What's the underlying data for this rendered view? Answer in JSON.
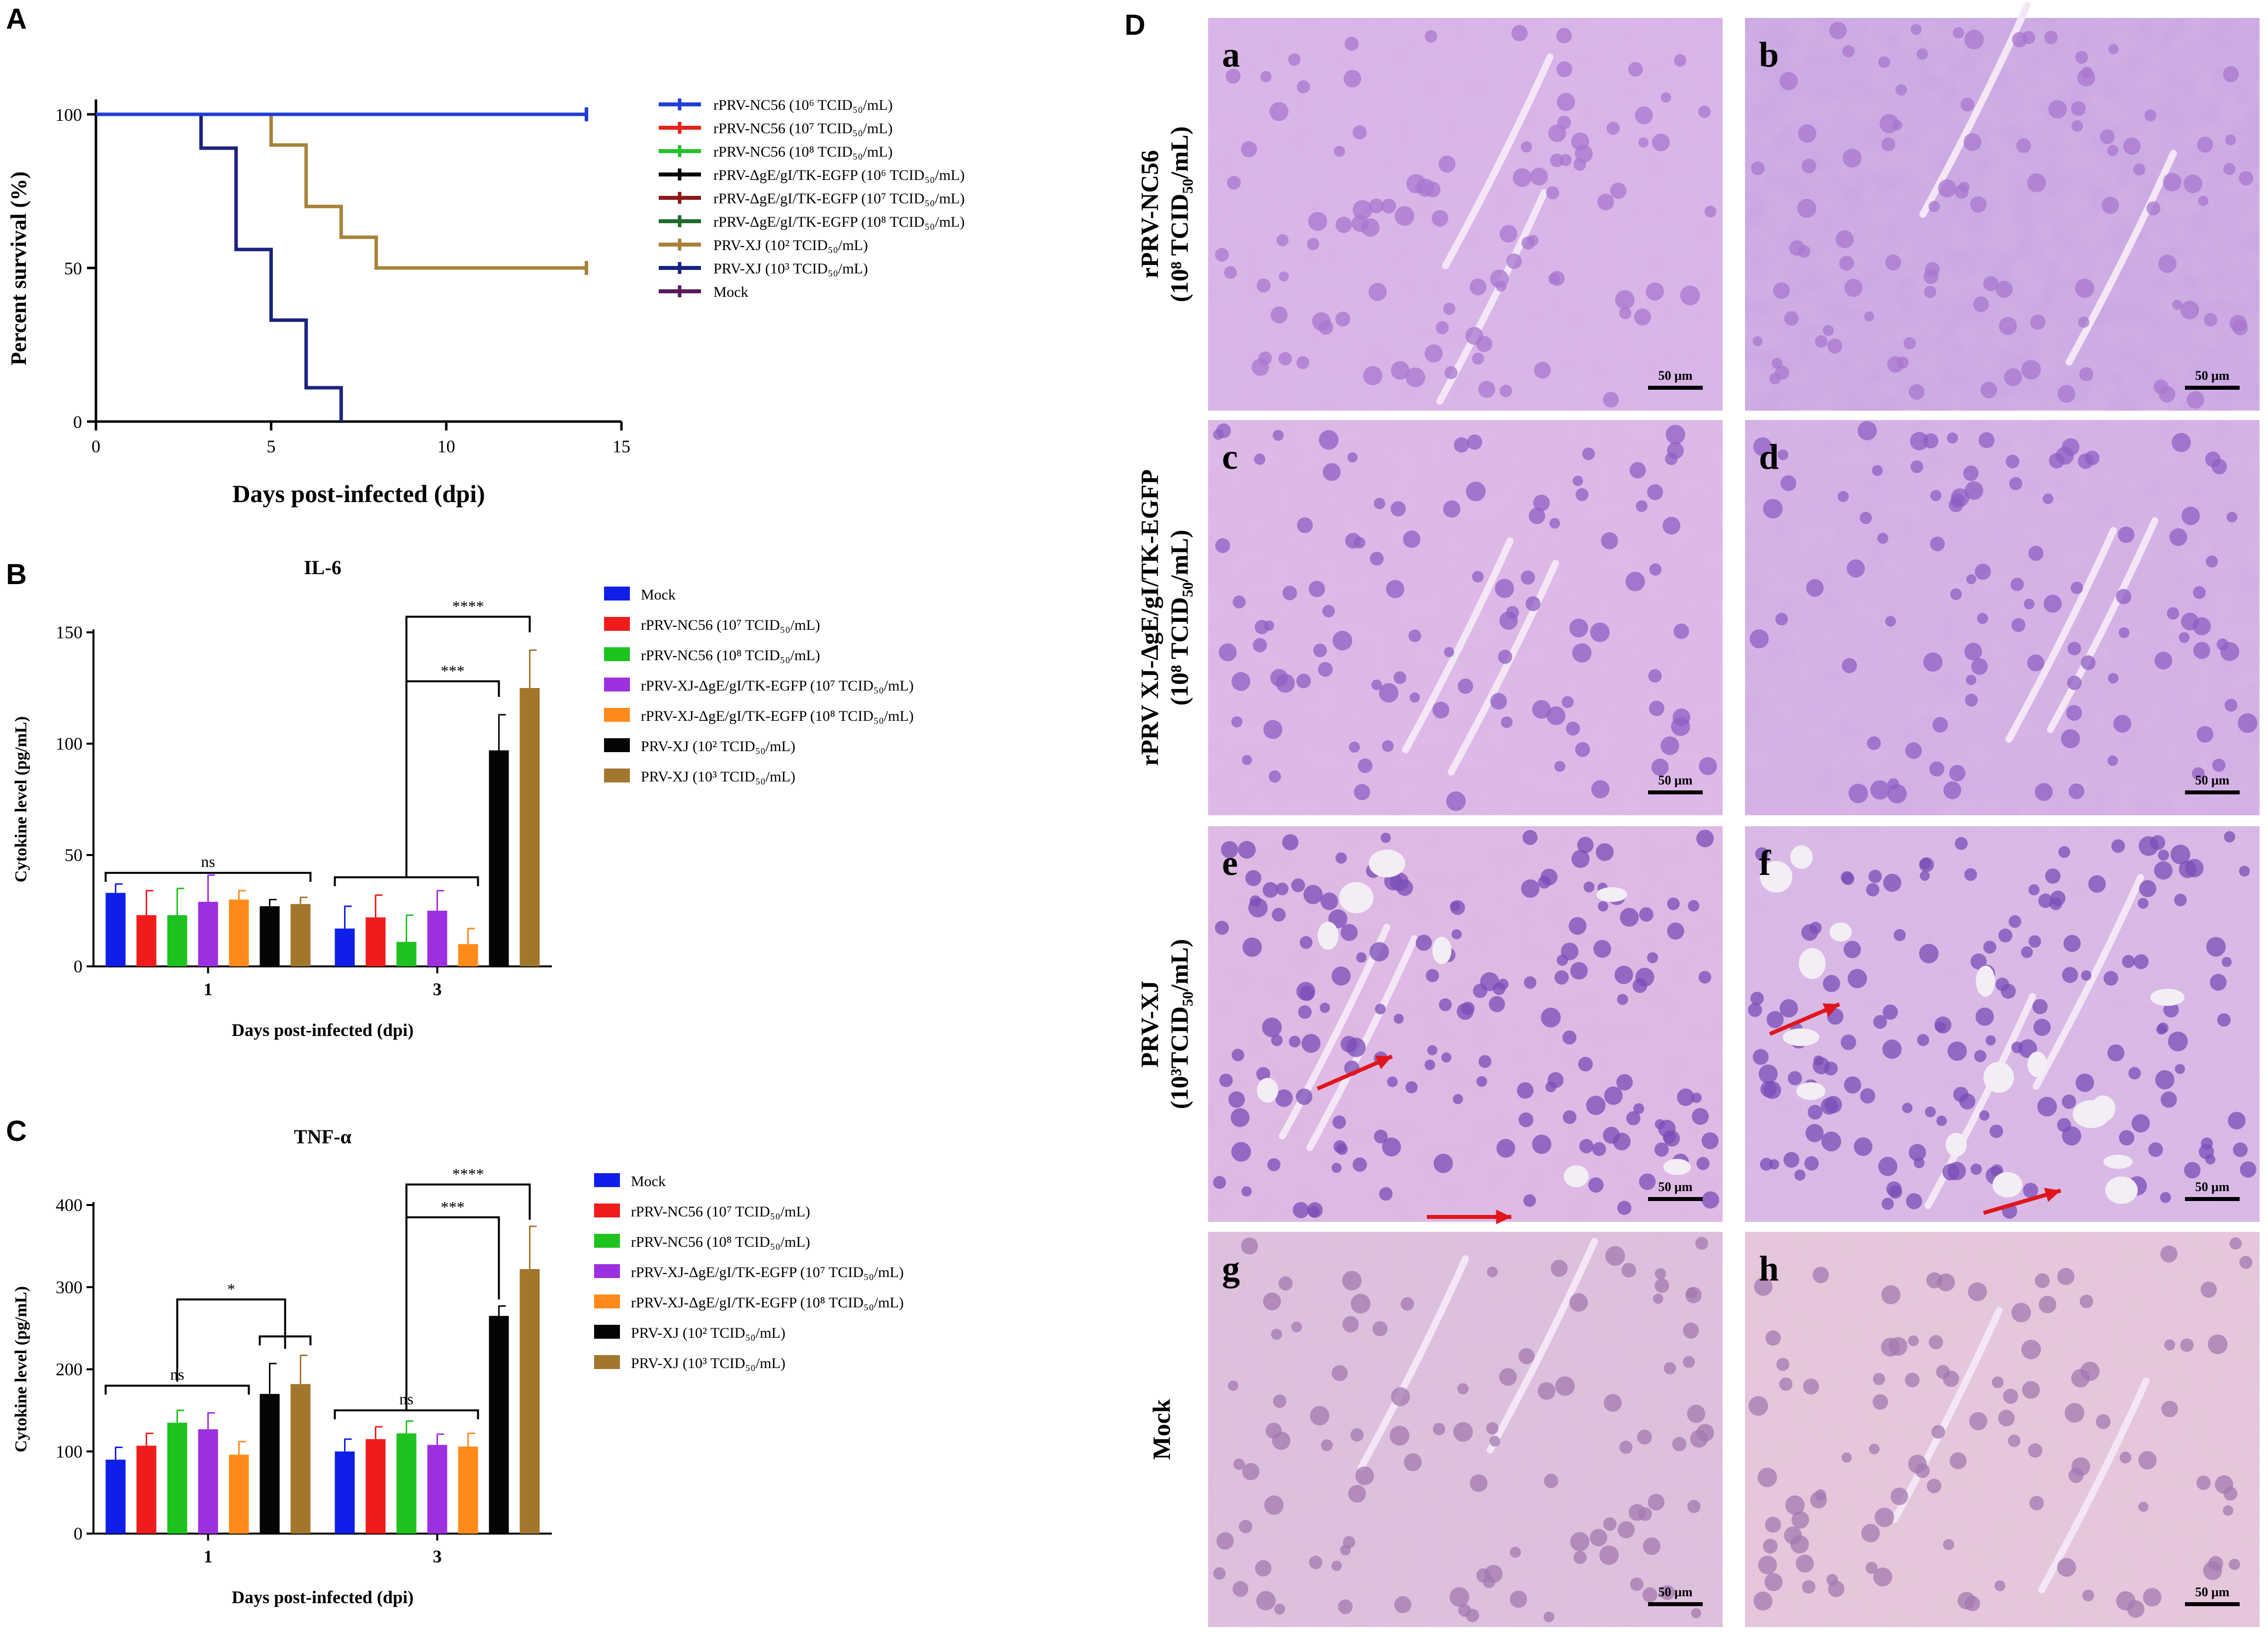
{
  "figure": {
    "panel_letters": [
      "A",
      "B",
      "C",
      "D"
    ]
  },
  "chart_data": [
    {
      "id": "A",
      "type": "line",
      "step": true,
      "title": "",
      "xlabel": "Days post-infected (dpi)",
      "ylabel": "Percent survival (%)",
      "xlim": [
        0,
        15
      ],
      "ylim": [
        0,
        100
      ],
      "xticks": [
        0,
        5,
        10,
        15
      ],
      "yticks": [
        0,
        50,
        100
      ],
      "legend_position": "right",
      "series": [
        {
          "name": "rPRV-NC56 (10⁶ TCID₅₀/mL)",
          "color": "#1f3fd6",
          "x": [
            0,
            14
          ],
          "y": [
            100,
            100
          ]
        },
        {
          "name": "rPRV-NC56 (10⁷ TCID₅₀/mL)",
          "color": "#e8221b",
          "x": [
            0,
            14
          ],
          "y": [
            100,
            100
          ]
        },
        {
          "name": "rPRV-NC56 (10⁸ TCID₅₀/mL)",
          "color": "#22c22a",
          "x": [
            0,
            14
          ],
          "y": [
            100,
            100
          ]
        },
        {
          "name": "rPRV-ΔgE/gI/TK-EGFP (10⁶ TCID₅₀/mL)",
          "color": "#000000",
          "x": [
            0,
            14
          ],
          "y": [
            100,
            100
          ]
        },
        {
          "name": "rPRV-ΔgE/gI/TK-EGFP (10⁷ TCID₅₀/mL)",
          "color": "#8b1a1a",
          "x": [
            0,
            14
          ],
          "y": [
            100,
            100
          ]
        },
        {
          "name": "rPRV-ΔgE/gI/TK-EGFP (10⁸ TCID₅₀/mL)",
          "color": "#1e6b2a",
          "x": [
            0,
            14
          ],
          "y": [
            100,
            100
          ]
        },
        {
          "name": "PRV-XJ (10² TCID₅₀/mL)",
          "color": "#a8823a",
          "x": [
            0,
            5,
            6,
            7,
            8,
            14
          ],
          "y": [
            100,
            90,
            70,
            60,
            50,
            50
          ]
        },
        {
          "name": "PRV-XJ (10³ TCID₅₀/mL)",
          "color": "#1a237e",
          "x": [
            0,
            3,
            4,
            5,
            6,
            7
          ],
          "y": [
            100,
            89,
            56,
            33,
            11,
            0
          ]
        },
        {
          "name": "Mock",
          "color": "#5a1a5a",
          "x": [
            0,
            14
          ],
          "y": [
            100,
            100
          ]
        }
      ]
    },
    {
      "id": "B",
      "type": "bar",
      "title": "IL-6",
      "xlabel": "Days post-infected (dpi)",
      "ylabel": "Cytokine level (pg/mL)",
      "categories": [
        "1",
        "3"
      ],
      "ylim": [
        0,
        150
      ],
      "yticks": [
        0,
        50,
        100,
        150
      ],
      "legend_position": "right",
      "series": [
        {
          "name": "Mock",
          "color": "#0f1ee8",
          "values": [
            33,
            17
          ],
          "errors": [
            4,
            10
          ]
        },
        {
          "name": "rPRV-NC56 (10⁷ TCID₅₀/mL)",
          "color": "#f01c1c",
          "values": [
            23,
            22
          ],
          "errors": [
            11,
            10
          ]
        },
        {
          "name": "rPRV-NC56 (10⁸ TCID₅₀/mL)",
          "color": "#1ec21e",
          "values": [
            23,
            11
          ],
          "errors": [
            12,
            12
          ]
        },
        {
          "name": "rPRV-XJ-ΔgE/gI/TK-EGFP (10⁷ TCID₅₀/mL)",
          "color": "#9c30e0",
          "values": [
            29,
            25
          ],
          "errors": [
            12,
            9
          ]
        },
        {
          "name": "rPRV-XJ-ΔgE/gI/TK-EGFP (10⁸ TCID₅₀/mL)",
          "color": "#ff8a1a",
          "values": [
            30,
            10
          ],
          "errors": [
            4,
            7
          ]
        },
        {
          "name": "PRV-XJ (10² TCID₅₀/mL)",
          "color": "#050505",
          "values": [
            27,
            97
          ],
          "errors": [
            3,
            16
          ]
        },
        {
          "name": "PRV-XJ (10³ TCID₅₀/mL)",
          "color": "#a2762c",
          "values": [
            28,
            125
          ],
          "errors": [
            3,
            17
          ]
        }
      ],
      "significance": [
        {
          "label": "ns",
          "category": 0,
          "from_series": 0,
          "to_series": 6,
          "y": 42,
          "type": "group"
        },
        {
          "label": "",
          "category": 1,
          "from_series": 0,
          "to_series": 4,
          "y": 40,
          "type": "group"
        },
        {
          "label": "***",
          "from": [
            1,
            2
          ],
          "to": [
            1,
            5
          ],
          "y": 128,
          "type": "pair"
        },
        {
          "label": "****",
          "from": [
            1,
            2
          ],
          "to": [
            1,
            6
          ],
          "y": 157,
          "type": "pair"
        }
      ]
    },
    {
      "id": "C",
      "type": "bar",
      "title": "TNF-α",
      "xlabel": "Days post-infected (dpi)",
      "ylabel": "Cytokine level (pg/mL)",
      "categories": [
        "1",
        "3"
      ],
      "ylim": [
        0,
        400
      ],
      "yticks": [
        0,
        100,
        200,
        300,
        400
      ],
      "legend_position": "right",
      "series": [
        {
          "name": "Mock",
          "color": "#0f1ee8",
          "values": [
            90,
            100
          ],
          "errors": [
            15,
            15
          ]
        },
        {
          "name": "rPRV-NC56 (10⁷ TCID₅₀/mL)",
          "color": "#f01c1c",
          "values": [
            107,
            115
          ],
          "errors": [
            15,
            15
          ]
        },
        {
          "name": "rPRV-NC56 (10⁸ TCID₅₀/mL)",
          "color": "#1ec21e",
          "values": [
            135,
            122
          ],
          "errors": [
            15,
            15
          ]
        },
        {
          "name": "rPRV-XJ-ΔgE/gI/TK-EGFP (10⁷ TCID₅₀/mL)",
          "color": "#9c30e0",
          "values": [
            127,
            108
          ],
          "errors": [
            20,
            13
          ]
        },
        {
          "name": "rPRV-XJ-ΔgE/gI/TK-EGFP (10⁸ TCID₅₀/mL)",
          "color": "#ff8a1a",
          "values": [
            96,
            106
          ],
          "errors": [
            16,
            16
          ]
        },
        {
          "name": "PRV-XJ (10² TCID₅₀/mL)",
          "color": "#050505",
          "values": [
            170,
            265
          ],
          "errors": [
            37,
            12
          ]
        },
        {
          "name": "PRV-XJ (10³ TCID₅₀/mL)",
          "color": "#a2762c",
          "values": [
            182,
            322
          ],
          "errors": [
            35,
            52
          ]
        }
      ],
      "significance": [
        {
          "label": "ns",
          "category": 0,
          "from_series": 0,
          "to_series": 4,
          "y": 180,
          "type": "group"
        },
        {
          "label": "ns",
          "category": 1,
          "from_series": 0,
          "to_series": 4,
          "y": 150,
          "type": "group"
        },
        {
          "label": "",
          "category": 0,
          "from_series": 5,
          "to_series": 6,
          "y": 240,
          "type": "group"
        },
        {
          "label": "*",
          "from": [
            0,
            2
          ],
          "to": [
            0,
            5.5
          ],
          "y": 285,
          "type": "pair"
        },
        {
          "label": "***",
          "from": [
            1,
            2
          ],
          "to": [
            1,
            5
          ],
          "y": 385,
          "type": "pair"
        },
        {
          "label": "****",
          "from": [
            1,
            2
          ],
          "to": [
            1,
            6
          ],
          "y": 425,
          "type": "pair"
        }
      ]
    }
  ],
  "histology": {
    "row_labels": [
      {
        "name": "rPRV-NC56",
        "dose_line": "(10⁸ TCID₅₀/mL)"
      },
      {
        "name": "rPRV XJ-ΔgE/gI/TK-EGFP",
        "dose_line": "(10⁸ TCID₅₀/mL)"
      },
      {
        "name": "PRV-XJ",
        "dose_line": "(10³TCID₅₀/mL)"
      },
      {
        "name": "Mock",
        "dose_line": ""
      }
    ],
    "panel_letters": [
      "a",
      "b",
      "c",
      "d",
      "e",
      "f",
      "g",
      "h"
    ],
    "scale_bar": "50 μm"
  }
}
